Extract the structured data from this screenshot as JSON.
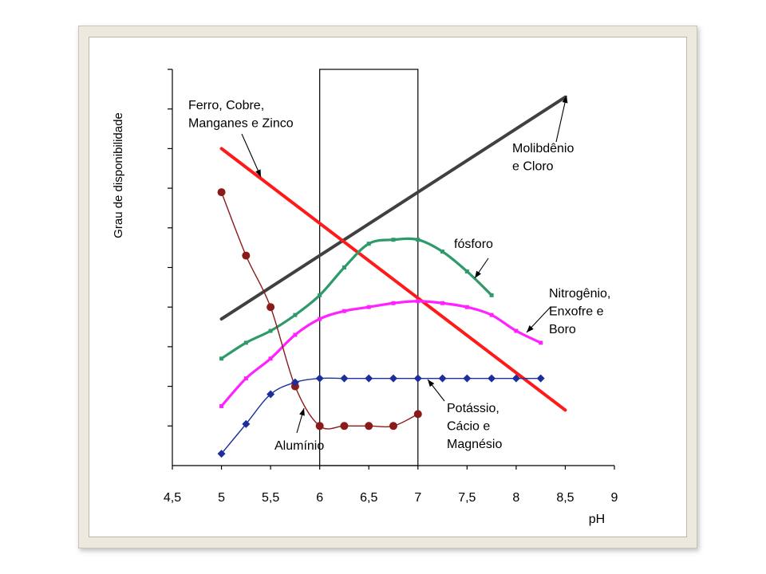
{
  "chart_data": {
    "type": "line",
    "xlabel": "pH",
    "ylabel": "Grau de disponibilidade",
    "xlim": [
      4.5,
      9
    ],
    "ylim": [
      0,
      10
    ],
    "x_ticks": [
      "4,5",
      "5",
      "5,5",
      "6",
      "6,5",
      "7",
      "7,5",
      "8",
      "8,5",
      "9"
    ],
    "x_tick_values": [
      4.5,
      5,
      5.5,
      6,
      6.5,
      7,
      7.5,
      8,
      8.5,
      9
    ],
    "y_tick_values": [
      1,
      2,
      3,
      4,
      5,
      6,
      7,
      8,
      9,
      10
    ],
    "highlight_range": [
      6,
      7
    ],
    "grid": false,
    "series": [
      {
        "id": "molibdenio",
        "color": "#404040",
        "marker": "none",
        "smooth": false,
        "x": [
          5,
          8.5
        ],
        "y": [
          3.7,
          9.3
        ]
      },
      {
        "id": "ferro",
        "color": "#ff1a1a",
        "marker": "none",
        "smooth": false,
        "x": [
          5,
          8.5
        ],
        "y": [
          8.0,
          1.4
        ]
      },
      {
        "id": "fosforo",
        "color": "#2e9a6a",
        "marker": "square",
        "smooth": true,
        "x": [
          5,
          5.25,
          5.5,
          5.75,
          6,
          6.25,
          6.5,
          6.75,
          7,
          7.25,
          7.5,
          7.75
        ],
        "y": [
          2.7,
          3.1,
          3.4,
          3.8,
          4.3,
          5.0,
          5.6,
          5.7,
          5.7,
          5.4,
          4.9,
          4.3
        ]
      },
      {
        "id": "nitrogenio",
        "color": "#ff22ff",
        "marker": "square",
        "smooth": true,
        "x": [
          5,
          5.25,
          5.5,
          5.75,
          6,
          6.25,
          6.5,
          6.75,
          7,
          7.25,
          7.5,
          7.75,
          8,
          8.25
        ],
        "y": [
          1.5,
          2.2,
          2.7,
          3.3,
          3.7,
          3.9,
          4.0,
          4.1,
          4.15,
          4.1,
          4.0,
          3.8,
          3.4,
          3.1
        ]
      },
      {
        "id": "aluminio",
        "color": "#8b1a1a",
        "marker": "circle",
        "smooth": true,
        "x": [
          5,
          5.25,
          5.5,
          5.75,
          6,
          6.25,
          6.5,
          6.75,
          7
        ],
        "y": [
          6.9,
          5.3,
          4.0,
          2.0,
          1.0,
          1.0,
          1.0,
          1.0,
          1.3
        ]
      },
      {
        "id": "potassio",
        "color": "#1c2d9c",
        "marker": "diamond",
        "smooth": true,
        "x": [
          5,
          5.25,
          5.5,
          5.75,
          6,
          6.25,
          6.5,
          6.75,
          7,
          7.25,
          7.5,
          7.75,
          8,
          8.25
        ],
        "y": [
          0.3,
          1.05,
          1.8,
          2.1,
          2.2,
          2.2,
          2.2,
          2.2,
          2.2,
          2.2,
          2.2,
          2.2,
          2.2,
          2.2
        ]
      }
    ],
    "annotations": [
      {
        "id": "ferro",
        "lines": [
          "Ferro, Cobre,",
          "Manganes e Zinco"
        ]
      },
      {
        "id": "molibdenio",
        "lines": [
          "Molibdênio",
          "e Cloro"
        ]
      },
      {
        "id": "fosforo",
        "lines": [
          "fósforo"
        ]
      },
      {
        "id": "nitrogenio",
        "lines": [
          "Nitrogênio,",
          "Enxofre e",
          "Boro"
        ]
      },
      {
        "id": "potassio",
        "lines": [
          "Potássio,",
          "Cácio e",
          "Magnésio"
        ]
      },
      {
        "id": "aluminio",
        "lines": [
          "Alumínio"
        ]
      }
    ]
  }
}
